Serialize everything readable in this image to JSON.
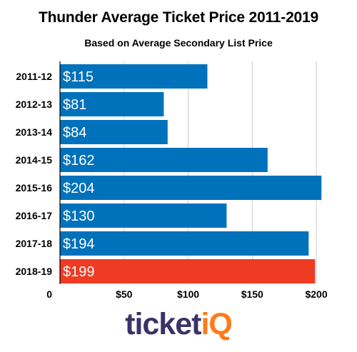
{
  "chart_data": {
    "type": "bar",
    "orientation": "horizontal",
    "title": "Thunder Average Ticket Price 2011-2019",
    "subtitle": "Based on Average Secondary List Price",
    "categories": [
      "2011-12",
      "2012-13",
      "2013-14",
      "2014-15",
      "2015-16",
      "2016-17",
      "2017-18",
      "2018-19"
    ],
    "values": [
      115,
      81,
      84,
      162,
      204,
      130,
      194,
      199
    ],
    "value_labels": [
      "$115",
      "$81",
      "$84",
      "$162",
      "$204",
      "$130",
      "$194",
      "$199"
    ],
    "x_ticks": [
      0,
      50,
      100,
      150,
      200
    ],
    "x_tick_labels": [
      "0",
      "$50",
      "$100",
      "$150",
      "$200"
    ],
    "xlim": [
      0,
      210
    ],
    "grid": true,
    "colors": {
      "bar": "#0072bb",
      "highlight": "#ee3b24",
      "grid": "#cccccc"
    },
    "highlight_category": "2018-19"
  },
  "logo": {
    "part1": "ticket",
    "part2": "iQ"
  }
}
